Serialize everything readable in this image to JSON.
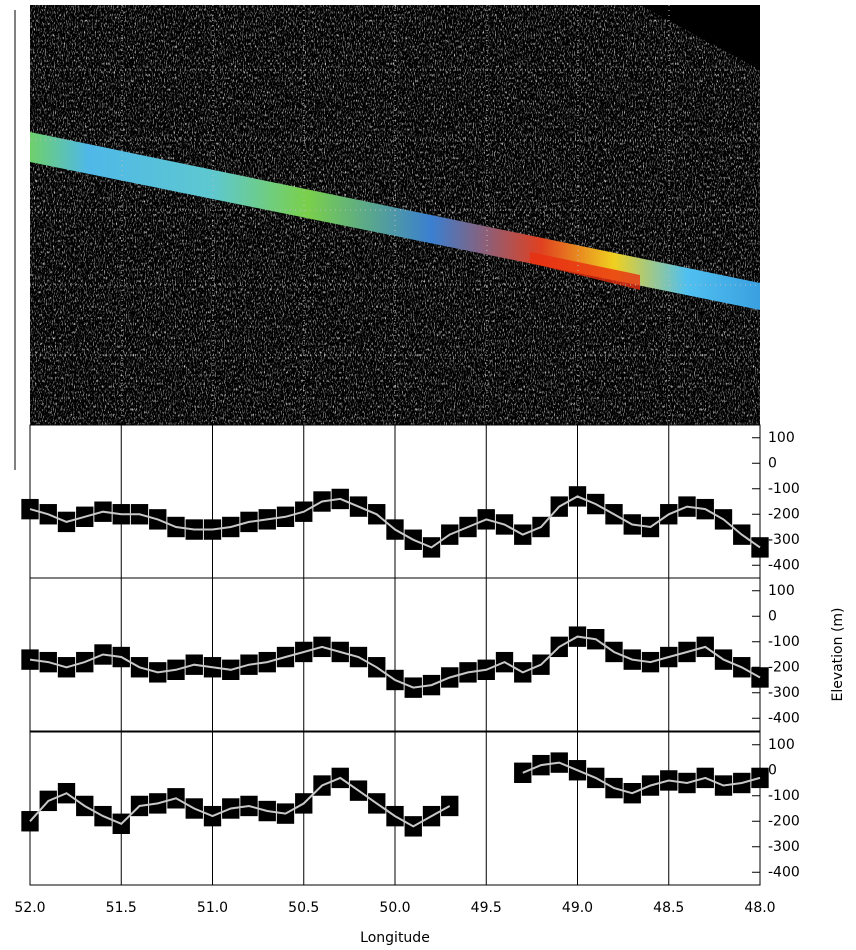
{
  "chart_data": [
    {
      "type": "line",
      "x": [
        52.0,
        51.9,
        51.8,
        51.7,
        51.6,
        51.5,
        51.4,
        51.3,
        51.2,
        51.1,
        51.0,
        50.9,
        50.8,
        50.7,
        50.6,
        50.5,
        50.4,
        50.3,
        50.2,
        50.1,
        50.0,
        49.9,
        49.8,
        49.7,
        49.6,
        49.5,
        49.4,
        49.3,
        49.2,
        49.1,
        49.0,
        48.9,
        48.8,
        48.7,
        48.6,
        48.5,
        48.4,
        48.3,
        48.2,
        48.1,
        48.0
      ],
      "values": [
        -180,
        -200,
        -230,
        -210,
        -190,
        -200,
        -200,
        -220,
        -250,
        -260,
        -260,
        -250,
        -230,
        -220,
        -210,
        -190,
        -150,
        -140,
        -170,
        -200,
        -260,
        -300,
        -330,
        -280,
        -250,
        -220,
        -240,
        -280,
        -250,
        -170,
        -130,
        -160,
        -200,
        -240,
        -250,
        -200,
        -170,
        -180,
        -220,
        -280,
        -330
      ],
      "error": 40,
      "color": "#c8c8c8",
      "error_color": "#000000",
      "xlim": [
        52.0,
        48.0
      ],
      "xticks": [
        52.0,
        51.5,
        51.0,
        50.5,
        50.0,
        49.5,
        49.0,
        48.5,
        48.0
      ],
      "ylim": [
        -450,
        150
      ],
      "yticks": [
        100,
        0,
        -100,
        -200,
        -300,
        -400
      ],
      "grid": true
    },
    {
      "type": "line",
      "x": [
        52.0,
        51.9,
        51.8,
        51.7,
        51.6,
        51.5,
        51.4,
        51.3,
        51.2,
        51.1,
        51.0,
        50.9,
        50.8,
        50.7,
        50.6,
        50.5,
        50.4,
        50.3,
        50.2,
        50.1,
        50.0,
        49.9,
        49.8,
        49.7,
        49.6,
        49.5,
        49.4,
        49.3,
        49.2,
        49.1,
        49.0,
        48.9,
        48.8,
        48.7,
        48.6,
        48.5,
        48.4,
        48.3,
        48.2,
        48.1,
        48.0
      ],
      "values": [
        -170,
        -180,
        -200,
        -180,
        -150,
        -160,
        -200,
        -220,
        -210,
        -190,
        -200,
        -210,
        -190,
        -180,
        -160,
        -140,
        -120,
        -140,
        -160,
        -200,
        -250,
        -280,
        -270,
        -240,
        -220,
        -210,
        -180,
        -220,
        -190,
        -120,
        -80,
        -90,
        -140,
        -170,
        -180,
        -160,
        -140,
        -120,
        -170,
        -200,
        -240
      ],
      "error": 40,
      "color": "#c8c8c8",
      "error_color": "#000000",
      "xlim": [
        52.0,
        48.0
      ],
      "xticks": [
        52.0,
        51.5,
        51.0,
        50.5,
        50.0,
        49.5,
        49.0,
        48.5,
        48.0
      ],
      "ylim": [
        -450,
        150
      ],
      "yticks": [
        100,
        0,
        -100,
        -200,
        -300,
        -400
      ],
      "grid": true,
      "ylabel": "Elevation (m)"
    },
    {
      "type": "line",
      "x": [
        52.0,
        51.9,
        51.8,
        51.7,
        51.6,
        51.5,
        51.4,
        51.3,
        51.2,
        51.1,
        51.0,
        50.9,
        50.8,
        50.7,
        50.6,
        50.5,
        50.4,
        50.3,
        50.2,
        50.1,
        50.0,
        49.9,
        49.8,
        49.7,
        49.6,
        49.5,
        49.4,
        49.3,
        49.2,
        49.1,
        49.0,
        48.9,
        48.8,
        48.7,
        48.6,
        48.5,
        48.4,
        48.3,
        48.2,
        48.1,
        48.0
      ],
      "values": [
        -200,
        -120,
        -90,
        -140,
        -180,
        -210,
        -140,
        -130,
        -110,
        -150,
        -180,
        -150,
        -140,
        -160,
        -170,
        -130,
        -60,
        -30,
        -80,
        -130,
        -180,
        -220,
        -180,
        -140,
        null,
        null,
        null,
        -10,
        20,
        30,
        0,
        -30,
        -70,
        -90,
        -60,
        -40,
        -50,
        -30,
        -60,
        -50,
        -30
      ],
      "error": 40,
      "color": "#c8c8c8",
      "error_color": "#000000",
      "xlim": [
        52.0,
        48.0
      ],
      "xticks": [
        {
          "value": 52.0,
          "label": "52.0"
        },
        {
          "value": 51.5,
          "label": "51.5"
        },
        {
          "value": 51.0,
          "label": "51.0"
        },
        {
          "value": 50.5,
          "label": "50.5"
        },
        {
          "value": 50.0,
          "label": "50.0"
        },
        {
          "value": 49.5,
          "label": "49.5"
        },
        {
          "value": 49.0,
          "label": "49.0"
        },
        {
          "value": 48.5,
          "label": "48.5"
        },
        {
          "value": 48.0,
          "label": "48.0"
        }
      ],
      "ylim": [
        -450,
        150
      ],
      "yticks": [
        100,
        0,
        -100,
        -200,
        -300,
        -400
      ],
      "grid": true,
      "xlabel": "Longitude"
    }
  ]
}
